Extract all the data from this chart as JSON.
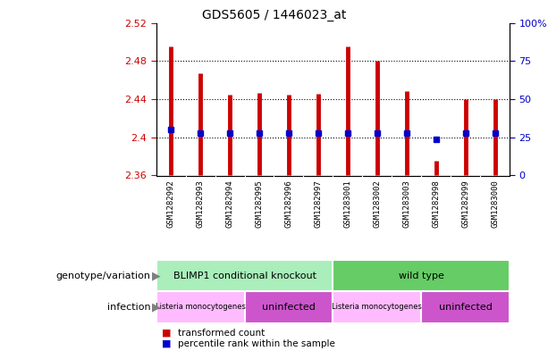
{
  "title": "GDS5605 / 1446023_at",
  "samples": [
    "GSM1282992",
    "GSM1282993",
    "GSM1282994",
    "GSM1282995",
    "GSM1282996",
    "GSM1282997",
    "GSM1283001",
    "GSM1283002",
    "GSM1283003",
    "GSM1282998",
    "GSM1282999",
    "GSM1283000"
  ],
  "transformed_counts": [
    2.495,
    2.467,
    2.445,
    2.447,
    2.445,
    2.446,
    2.495,
    2.48,
    2.448,
    2.375,
    2.44,
    2.44
  ],
  "percentile_values": [
    2.408,
    2.404,
    2.404,
    2.404,
    2.404,
    2.404,
    2.404,
    2.404,
    2.404,
    2.398,
    2.404,
    2.404
  ],
  "y_min": 2.36,
  "y_max": 2.52,
  "y_ticks": [
    2.36,
    2.4,
    2.44,
    2.48,
    2.52
  ],
  "right_y_ticks": [
    0,
    25,
    50,
    75,
    100
  ],
  "right_y_tick_positions": [
    2.36,
    2.4,
    2.44,
    2.48,
    2.52
  ],
  "bar_color": "#cc0000",
  "dot_color": "#0000cc",
  "genotype_groups": [
    {
      "label": "BLIMP1 conditional knockout",
      "start": 0,
      "end": 6,
      "color": "#aaeebb"
    },
    {
      "label": "wild type",
      "start": 6,
      "end": 12,
      "color": "#66cc66"
    }
  ],
  "infection_groups": [
    {
      "label": "Listeria monocytogenes",
      "start": 0,
      "end": 3,
      "color": "#ffbbff"
    },
    {
      "label": "uninfected",
      "start": 3,
      "end": 6,
      "color": "#cc55cc"
    },
    {
      "label": "Listeria monocytogenes",
      "start": 6,
      "end": 9,
      "color": "#ffbbff"
    },
    {
      "label": "uninfected",
      "start": 9,
      "end": 12,
      "color": "#cc55cc"
    }
  ],
  "legend_items": [
    {
      "label": "transformed count",
      "color": "#cc0000"
    },
    {
      "label": "percentile rank within the sample",
      "color": "#0000cc"
    }
  ],
  "left_label_color": "#cc0000",
  "right_label_color": "#0000cc",
  "tick_bg_color": "#d8d8d8",
  "grid_dotted_ticks": [
    2.4,
    2.44,
    2.48
  ]
}
